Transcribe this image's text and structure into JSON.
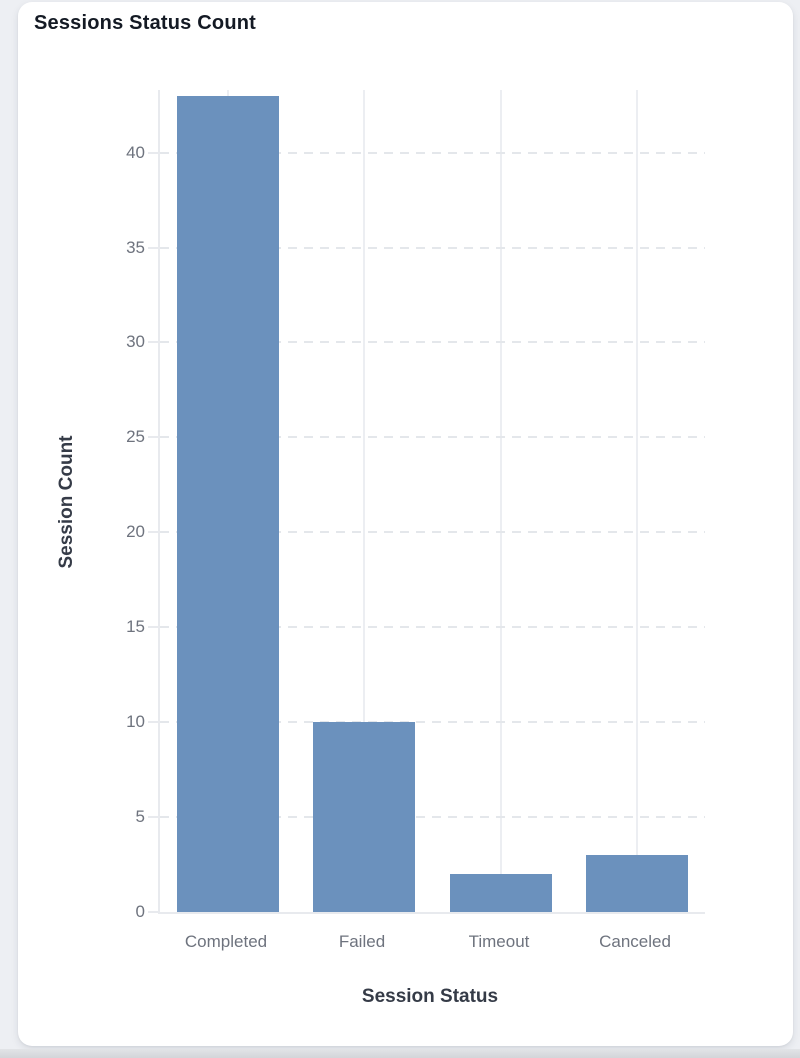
{
  "card": {
    "title": "Sessions Status Count"
  },
  "chart_data": {
    "type": "bar",
    "title": "Sessions Status Count",
    "categories": [
      "Completed",
      "Failed",
      "Timeout",
      "Canceled"
    ],
    "values": [
      43,
      10,
      2,
      3
    ],
    "xlabel": "Session Status",
    "ylabel": "Session Count",
    "ylim": [
      0,
      43.3
    ],
    "yticks": [
      0,
      5,
      10,
      15,
      20,
      25,
      30,
      35,
      40
    ],
    "grid": {
      "horizontal": "dashed",
      "vertical": "solid"
    },
    "legend": "none",
    "bar_color": "#6b91bd",
    "grid_color": "#e8eaee",
    "tick_label_color": "#6e737e",
    "axis_title_color": "#353b47",
    "title_color": "#141a24"
  }
}
